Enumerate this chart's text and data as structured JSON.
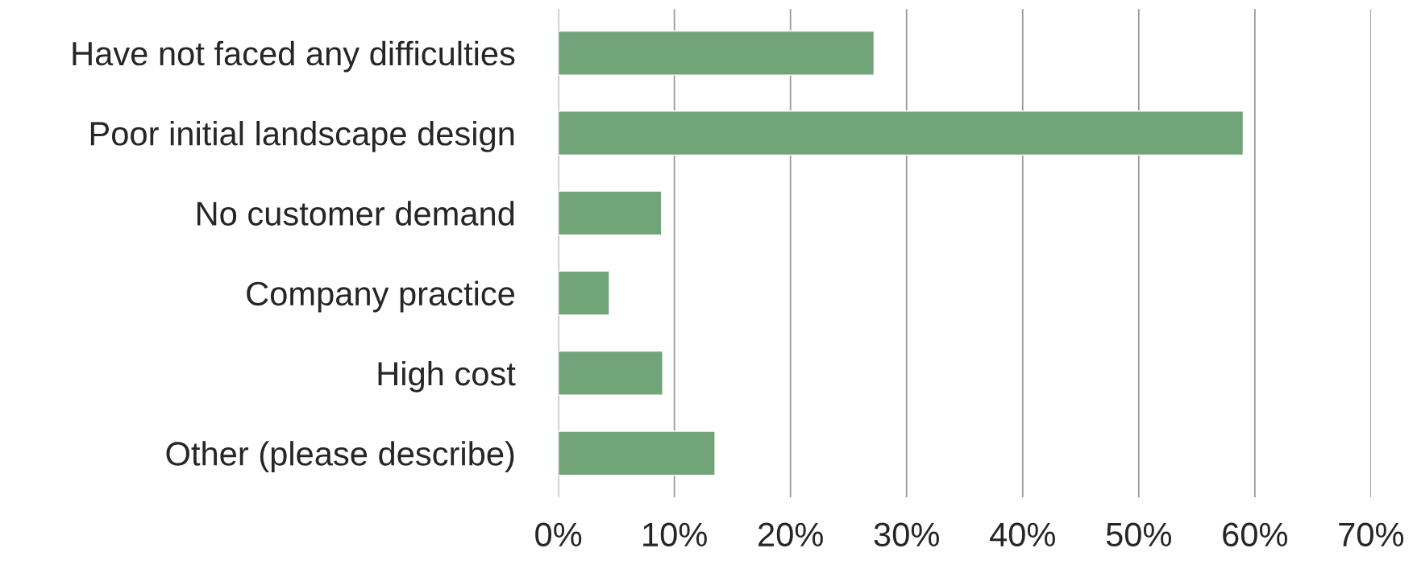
{
  "chart_data": {
    "type": "bar",
    "orientation": "horizontal",
    "categories": [
      "Have not faced any difficulties",
      "Poor initial landscape design",
      "No customer demand",
      "Company practice",
      "High cost",
      "Other (please describe)"
    ],
    "values": [
      27.2,
      59.0,
      8.9,
      4.4,
      9.0,
      13.5
    ],
    "color": "#72a47a",
    "xlim": [
      0,
      70
    ],
    "xticks": [
      {
        "value": 0,
        "label": "0%"
      },
      {
        "value": 10,
        "label": "10%"
      },
      {
        "value": 20,
        "label": "20%"
      },
      {
        "value": 30,
        "label": "30%"
      },
      {
        "value": 40,
        "label": "40%"
      },
      {
        "value": 50,
        "label": "50%"
      },
      {
        "value": 60,
        "label": "60%"
      },
      {
        "value": 70,
        "label": "70%"
      }
    ],
    "grid": "x",
    "legend": false
  }
}
